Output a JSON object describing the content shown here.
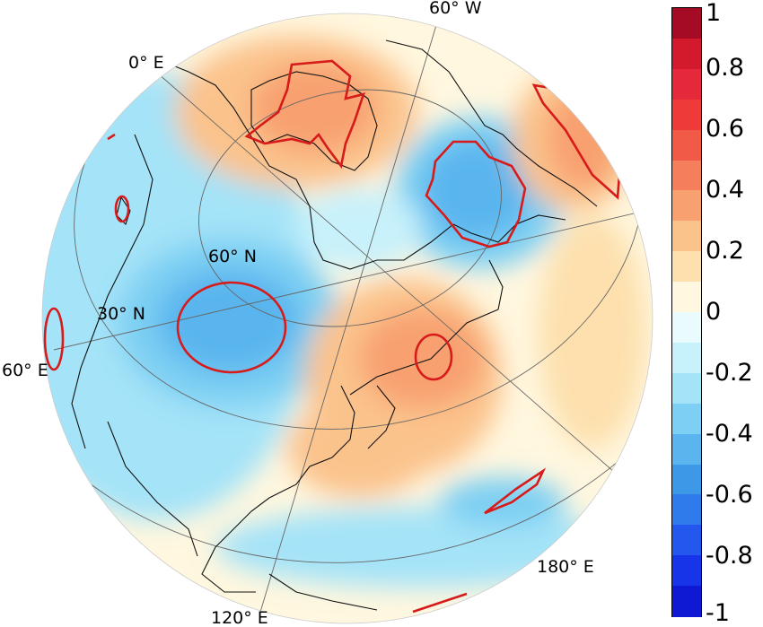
{
  "map": {
    "labels": {
      "lon_0": "0° E",
      "lon_60w": "60° W",
      "lat_60n": "60° N",
      "lat_30n": "30° N",
      "lon_60e": "60° E",
      "lon_120e": "120° E",
      "lon_180e": "180° E"
    }
  },
  "colorbar": {
    "levels": [
      {
        "value": 1.0,
        "color": "#a50b24"
      },
      {
        "value": 0.9,
        "color": "#d21a2c"
      },
      {
        "value": 0.8,
        "color": "#e5283a"
      },
      {
        "value": 0.7,
        "color": "#ee3b3a"
      },
      {
        "value": 0.6,
        "color": "#f05a47"
      },
      {
        "value": 0.5,
        "color": "#f57f5d"
      },
      {
        "value": 0.4,
        "color": "#f8a070"
      },
      {
        "value": 0.3,
        "color": "#fbc38c"
      },
      {
        "value": 0.2,
        "color": "#fde0ad"
      },
      {
        "value": 0.1,
        "color": "#fff7df"
      },
      {
        "value": 0.0,
        "color": "#e9fbfd"
      },
      {
        "value": -0.1,
        "color": "#c7f1fb"
      },
      {
        "value": -0.2,
        "color": "#a4e3f8"
      },
      {
        "value": -0.3,
        "color": "#7dcff3"
      },
      {
        "value": -0.4,
        "color": "#5ab5ee"
      },
      {
        "value": -0.5,
        "color": "#3e98e8"
      },
      {
        "value": -0.6,
        "color": "#2f7bec"
      },
      {
        "value": -0.7,
        "color": "#2457ee"
      },
      {
        "value": -0.8,
        "color": "#1834e8"
      },
      {
        "value": -0.9,
        "color": "#0f18d2"
      }
    ],
    "tick_labels": [
      "1",
      "0.8",
      "0.6",
      "0.4",
      "0.2",
      "0",
      "-0.2",
      "-0.4",
      "-0.6",
      "-0.8",
      "-1"
    ]
  }
}
